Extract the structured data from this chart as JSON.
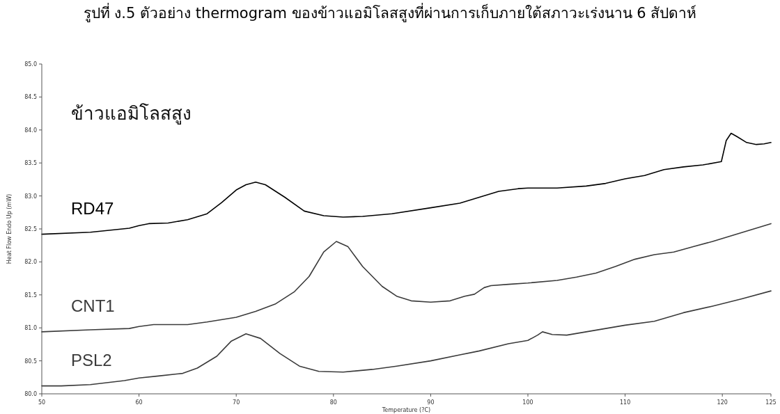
{
  "chart_data": {
    "type": "line",
    "title": "รูปที่ ง.5 ตัวอย่าง thermogram ของข้าวแอมิโลสสูงที่ผ่านการเก็บภายใต้สภาวะเร่งนาน 6 สัปดาห์",
    "xlabel": "Temperature (?C)",
    "ylabel": "Heat Flow Endo Up (mW)",
    "annotations": [
      "ข้าวแอมิโลสสูง"
    ],
    "xlim": [
      50,
      125
    ],
    "ylim": [
      80,
      85
    ],
    "xticks": [
      50,
      60,
      70,
      80,
      90,
      100,
      110,
      120,
      125
    ],
    "yticks": [
      {
        "value": 80,
        "label": "80.0"
      },
      {
        "value": 80.5,
        "label": "80.5"
      },
      {
        "value": 81,
        "label": "81.0"
      },
      {
        "value": 81.5,
        "label": "81.5"
      },
      {
        "value": 82,
        "label": "82.0"
      },
      {
        "value": 82.5,
        "label": "82.5"
      },
      {
        "value": 83,
        "label": "83.0"
      },
      {
        "value": 83.5,
        "label": "83.5"
      },
      {
        "value": 84,
        "label": "84.0"
      },
      {
        "value": 84.5,
        "label": "84.5"
      },
      {
        "value": 85,
        "label": "85.0"
      }
    ],
    "grid": false,
    "legend": false,
    "series": [
      {
        "name": "RD47",
        "color": "#000000",
        "x": [
          50,
          55,
          59,
          60,
          61,
          63,
          65,
          67,
          68.5,
          70,
          71,
          72,
          73,
          75,
          77,
          79,
          81,
          83,
          86,
          90,
          93,
          95,
          97,
          99,
          100,
          103,
          106,
          108,
          110,
          112,
          114,
          116,
          118,
          119.9,
          120.4,
          120.9,
          121.5,
          122.5,
          123.5,
          124.3,
          125
        ],
        "values": [
          82.42,
          82.45,
          82.51,
          82.55,
          82.58,
          82.59,
          82.64,
          82.73,
          82.9,
          83.09,
          83.17,
          83.21,
          83.17,
          82.98,
          82.77,
          82.7,
          82.68,
          82.69,
          82.73,
          82.82,
          82.89,
          82.98,
          83.07,
          83.11,
          83.12,
          83.12,
          83.15,
          83.19,
          83.26,
          83.31,
          83.4,
          83.44,
          83.47,
          83.52,
          83.84,
          83.95,
          83.9,
          83.81,
          83.78,
          83.79,
          83.81
        ]
      },
      {
        "name": "CNT1",
        "color": "#3a3a3a",
        "x": [
          50,
          55,
          59,
          60,
          61.5,
          65,
          67,
          70,
          72,
          74,
          76,
          77.5,
          79,
          80.3,
          81.5,
          83,
          85,
          86.5,
          88,
          90,
          92,
          93.5,
          94.5,
          95.5,
          96.2,
          98,
          100,
          103,
          105,
          107,
          109,
          111,
          113,
          115,
          117,
          119,
          121,
          123,
          125
        ],
        "values": [
          80.94,
          80.97,
          80.99,
          81.02,
          81.05,
          81.05,
          81.09,
          81.16,
          81.25,
          81.36,
          81.55,
          81.78,
          82.15,
          82.31,
          82.23,
          81.93,
          81.63,
          81.48,
          81.41,
          81.39,
          81.41,
          81.48,
          81.51,
          81.61,
          81.64,
          81.66,
          81.68,
          81.72,
          81.77,
          81.83,
          81.93,
          82.04,
          82.11,
          82.15,
          82.23,
          82.31,
          82.4,
          82.49,
          82.58
        ]
      },
      {
        "name": "PSL2",
        "color": "#3a3a3a",
        "x": [
          50,
          52,
          55,
          58.5,
          60,
          62,
          64.5,
          66,
          68,
          69.5,
          71,
          72.5,
          74.5,
          76.5,
          78.5,
          81,
          84,
          86.5,
          90,
          93,
          95,
          98,
          100,
          101,
          101.5,
          102.5,
          104,
          106,
          108,
          110,
          113,
          116,
          119,
          122,
          125
        ],
        "values": [
          80.12,
          80.12,
          80.14,
          80.2,
          80.24,
          80.27,
          80.31,
          80.39,
          80.57,
          80.8,
          80.91,
          80.84,
          80.61,
          80.42,
          80.34,
          80.33,
          80.37,
          80.42,
          80.5,
          80.59,
          80.65,
          80.76,
          80.81,
          80.89,
          80.94,
          80.9,
          80.89,
          80.94,
          80.99,
          81.04,
          81.1,
          81.23,
          81.33,
          81.44,
          81.56
        ]
      }
    ]
  }
}
